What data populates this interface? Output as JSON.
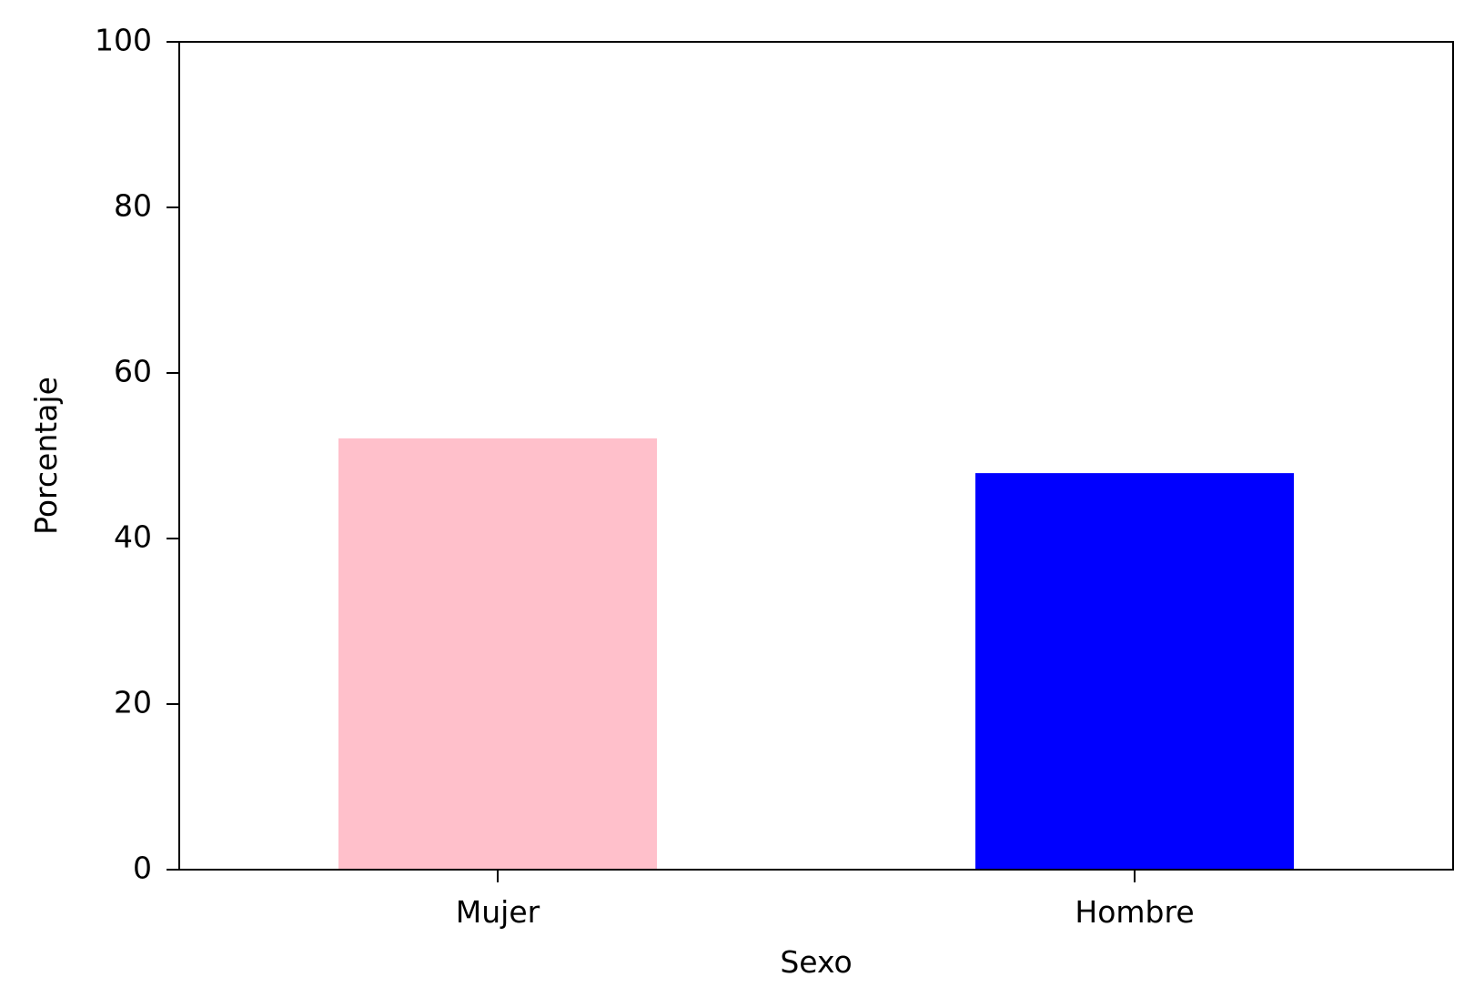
{
  "chart_data": {
    "type": "bar",
    "title": "",
    "xlabel": "Sexo",
    "ylabel": "Porcentaje",
    "categories": [
      "Mujer",
      "Hombre"
    ],
    "values": [
      52.1,
      47.9
    ],
    "colors": [
      "#ffc0cb",
      "#0000ff"
    ],
    "ylim": [
      0,
      100
    ],
    "yticks": [
      0,
      20,
      40,
      60,
      80,
      100
    ],
    "grid": false,
    "legend": "none"
  }
}
